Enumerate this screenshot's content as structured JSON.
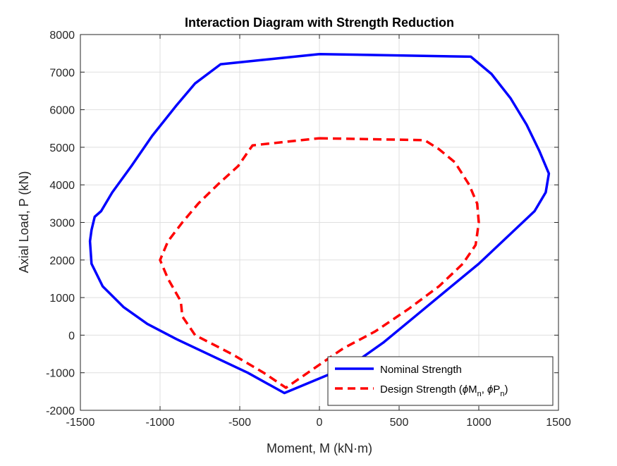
{
  "chart_data": {
    "type": "line",
    "title": "Interaction Diagram with Strength Reduction",
    "xlabel": "Moment, M (kN·m)",
    "ylabel": "Axial Load, P (kN)",
    "xlim": [
      -1500,
      1500
    ],
    "ylim": [
      -2000,
      8000
    ],
    "xticks": [
      -1500,
      -1000,
      -500,
      0,
      500,
      1000,
      1500
    ],
    "yticks": [
      -2000,
      -1000,
      0,
      1000,
      2000,
      3000,
      4000,
      5000,
      6000,
      7000,
      8000
    ],
    "xtick_labels": [
      "-1500",
      "-1000",
      "-500",
      "0",
      "500",
      "1000",
      "1500"
    ],
    "ytick_labels": [
      "-2000",
      "-1000",
      "0",
      "1000",
      "2000",
      "3000",
      "4000",
      "5000",
      "6000",
      "7000",
      "8000"
    ],
    "grid": true,
    "legend_position": "bottom-right",
    "series": [
      {
        "name": "Nominal Strength",
        "color": "#0000ff",
        "style": "solid",
        "points": [
          [
            0,
            7480
          ],
          [
            950,
            7410
          ],
          [
            1080,
            6950
          ],
          [
            1200,
            6300
          ],
          [
            1300,
            5600
          ],
          [
            1380,
            4900
          ],
          [
            1440,
            4300
          ],
          [
            1420,
            3800
          ],
          [
            1350,
            3300
          ],
          [
            1200,
            2700
          ],
          [
            1000,
            1900
          ],
          [
            800,
            1200
          ],
          [
            600,
            500
          ],
          [
            400,
            -200
          ],
          [
            200,
            -800
          ],
          [
            -220,
            -1540
          ],
          [
            -450,
            -1000
          ],
          [
            -700,
            -500
          ],
          [
            -900,
            -100
          ],
          [
            -1080,
            300
          ],
          [
            -1230,
            750
          ],
          [
            -1360,
            1300
          ],
          [
            -1430,
            1900
          ],
          [
            -1440,
            2500
          ],
          [
            -1430,
            2800
          ],
          [
            -1410,
            3150
          ],
          [
            -1370,
            3300
          ],
          [
            -1300,
            3800
          ],
          [
            -1180,
            4500
          ],
          [
            -1050,
            5300
          ],
          [
            -900,
            6100
          ],
          [
            -780,
            6700
          ],
          [
            -620,
            7210
          ],
          [
            0,
            7480
          ]
        ]
      },
      {
        "name": "Design Strength (ϕM_n, ϕP_n)",
        "color": "#ff0000",
        "style": "dashed",
        "points": [
          [
            0,
            5240
          ],
          [
            660,
            5190
          ],
          [
            750,
            4950
          ],
          [
            850,
            4600
          ],
          [
            940,
            4000
          ],
          [
            990,
            3500
          ],
          [
            1000,
            3000
          ],
          [
            980,
            2400
          ],
          [
            900,
            1900
          ],
          [
            750,
            1300
          ],
          [
            560,
            700
          ],
          [
            350,
            100
          ],
          [
            150,
            -350
          ],
          [
            -210,
            -1400
          ],
          [
            -350,
            -1000
          ],
          [
            -550,
            -500
          ],
          [
            -780,
            0
          ],
          [
            -860,
            500
          ],
          [
            -870,
            900
          ],
          [
            -950,
            1500
          ],
          [
            -1000,
            2000
          ],
          [
            -950,
            2500
          ],
          [
            -860,
            3000
          ],
          [
            -760,
            3500
          ],
          [
            -640,
            4000
          ],
          [
            -510,
            4500
          ],
          [
            -420,
            5050
          ],
          [
            0,
            5240
          ]
        ]
      }
    ]
  }
}
